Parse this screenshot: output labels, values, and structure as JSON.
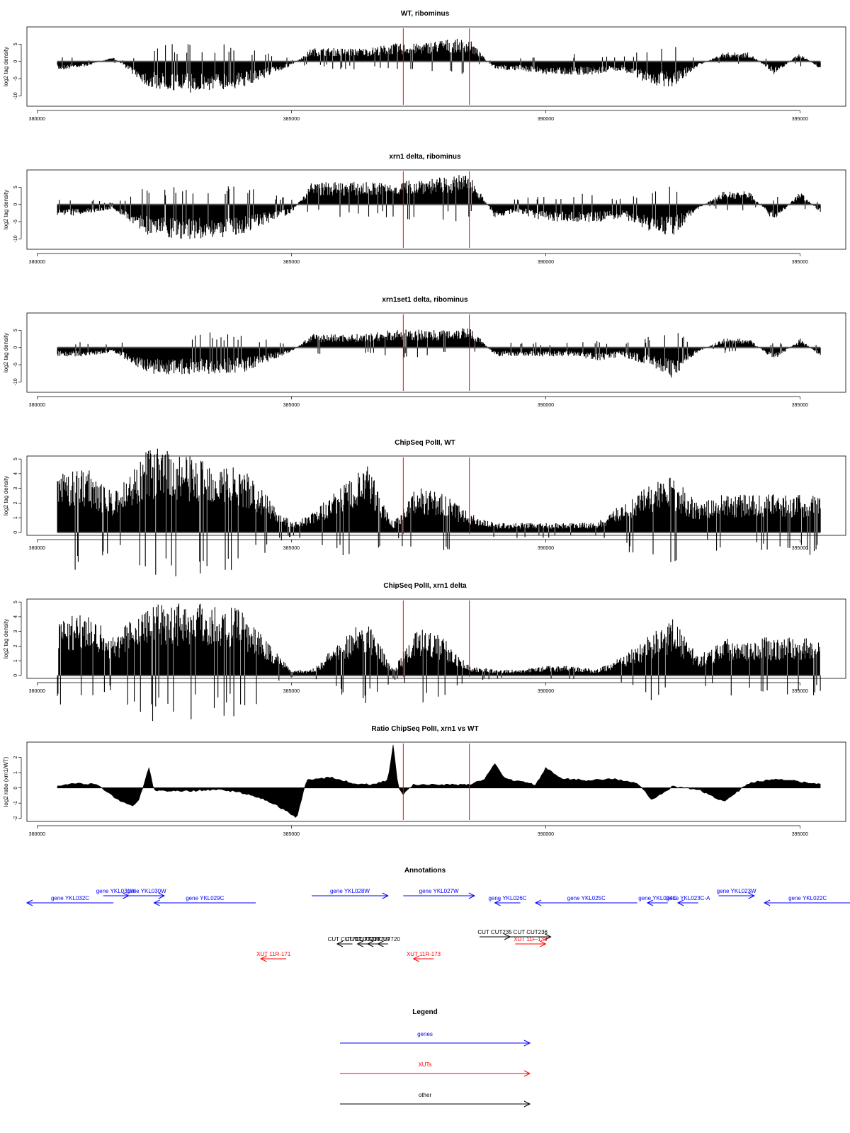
{
  "colors": {
    "signal": "#000000",
    "marker": "#ff0000",
    "gene": "#0000ff",
    "xut": "#ff0000",
    "other": "#000000"
  },
  "x_axis": {
    "ticks": [
      380000,
      385000,
      390000,
      395000
    ],
    "range": [
      379800,
      395900
    ],
    "data_start": 380400,
    "data_end": 395400
  },
  "markers": [
    387200,
    388500
  ],
  "chart_data": [
    {
      "type": "bar",
      "title": "WT, ribominus",
      "ylabel": "log2 tag density",
      "ylim": [
        -13,
        10
      ],
      "yticks": [
        5,
        0,
        -5,
        -10
      ],
      "x": [
        380400,
        381000,
        381500,
        382200,
        383000,
        384000,
        385000,
        385400,
        386000,
        386500,
        387000,
        387500,
        388000,
        388500,
        389000,
        389500,
        390000,
        390500,
        391000,
        391500,
        392000,
        392500,
        393000,
        393500,
        394000,
        394500,
        395000,
        395400
      ],
      "values": [
        -2,
        -1,
        1,
        -6,
        -7,
        -6,
        -1,
        3,
        3,
        3,
        4,
        4,
        5,
        5,
        -2,
        -2,
        -3,
        -3,
        -3,
        -2,
        -5,
        -6,
        -1,
        2,
        2,
        -3,
        2,
        -2
      ],
      "marker_lines": [
        387200,
        388500
      ]
    },
    {
      "type": "bar",
      "title": "xrn1 delta, ribominus",
      "ylabel": "log2 tag density",
      "ylim": [
        -13,
        10
      ],
      "yticks": [
        5,
        0,
        -5,
        -10
      ],
      "x": [
        380400,
        381000,
        381500,
        382200,
        383000,
        384000,
        385000,
        385400,
        386000,
        386500,
        387000,
        387500,
        388000,
        388500,
        389000,
        389500,
        390000,
        390500,
        391000,
        391500,
        392000,
        392500,
        393000,
        393500,
        394000,
        394500,
        395000,
        395400
      ],
      "values": [
        -3,
        -2,
        -1,
        -7,
        -8,
        -7,
        -2,
        5,
        5,
        5,
        5,
        6,
        6,
        7,
        -3,
        -2,
        -4,
        -4,
        -4,
        -3,
        -6,
        -7,
        -1,
        3,
        3,
        -4,
        3,
        -2
      ],
      "marker_lines": [
        387200,
        388500
      ]
    },
    {
      "type": "bar",
      "title": "xrn1set1 delta, ribominus",
      "ylabel": "log2 tag density",
      "ylim": [
        -13,
        10
      ],
      "yticks": [
        5,
        0,
        -5,
        -10
      ],
      "x": [
        380400,
        381000,
        381500,
        382200,
        383000,
        384000,
        385000,
        385400,
        386000,
        386500,
        387000,
        387500,
        388000,
        388500,
        389000,
        389500,
        390000,
        390500,
        391000,
        391500,
        392000,
        392500,
        393000,
        393500,
        394000,
        394500,
        395000,
        395400
      ],
      "values": [
        -2,
        -2,
        -1,
        -6,
        -6,
        -6,
        -1,
        3,
        3,
        3,
        4,
        4,
        4,
        5,
        -2,
        -2,
        -2,
        -2,
        -3,
        -2,
        -4,
        -7,
        -1,
        2,
        2,
        -3,
        2,
        -2
      ],
      "marker_lines": [
        387200,
        388500
      ]
    },
    {
      "type": "bar",
      "title": "ChipSeq PolII, WT",
      "ylabel": "log2 tag density",
      "ylim": [
        -0.2,
        5.2
      ],
      "yticks": [
        0,
        1,
        2,
        3,
        4,
        5
      ],
      "x": [
        380400,
        381000,
        381500,
        382200,
        383000,
        384000,
        385000,
        385400,
        386000,
        386500,
        387000,
        387500,
        388000,
        388500,
        389000,
        389500,
        390000,
        390500,
        391000,
        391500,
        392000,
        392500,
        393000,
        393500,
        394000,
        394500,
        395000,
        395400
      ],
      "values": [
        3,
        3.5,
        2,
        4.5,
        4,
        3.5,
        0.5,
        1,
        2.5,
        3.5,
        0.5,
        2.5,
        2,
        1,
        0.5,
        0.5,
        0.5,
        0.5,
        0.5,
        1.5,
        2.5,
        3,
        1.5,
        2,
        2,
        2,
        2,
        2
      ],
      "marker_lines": [
        387200,
        388500
      ]
    },
    {
      "type": "bar",
      "title": "ChipSeq PolII, xrn1 delta",
      "ylabel": "log2 tag density",
      "ylim": [
        -0.2,
        5.2
      ],
      "yticks": [
        0,
        1,
        2,
        3,
        4,
        5
      ],
      "x": [
        380400,
        381000,
        381500,
        382200,
        383000,
        384000,
        385000,
        385400,
        386000,
        386500,
        387000,
        387500,
        388000,
        388500,
        389000,
        389500,
        390000,
        390500,
        391000,
        391500,
        392000,
        392500,
        393000,
        393500,
        394000,
        394500,
        395000,
        395400
      ],
      "values": [
        3,
        3.5,
        2,
        4,
        4,
        3.5,
        0.3,
        0.3,
        2,
        3,
        0.3,
        2.5,
        2,
        0.5,
        0.3,
        0.3,
        0.5,
        0.5,
        0.3,
        1,
        2,
        3,
        1,
        2,
        2,
        2,
        2,
        2
      ],
      "marker_lines": [
        387200,
        388500
      ]
    },
    {
      "type": "area",
      "title": "Ratio ChipSeq PolII, xrn1 vs WT",
      "ylabel": "log2 ratio (xrn1/WT)",
      "ylim": [
        -2.2,
        3
      ],
      "yticks": [
        2,
        1,
        0,
        -1,
        -2
      ],
      "x": [
        380400,
        380800,
        381200,
        381600,
        381900,
        382000,
        382200,
        382300,
        383000,
        383600,
        384000,
        384500,
        384900,
        385100,
        385300,
        385800,
        386200,
        386600,
        386900,
        387000,
        387100,
        387200,
        387400,
        388000,
        388500,
        388800,
        389000,
        389200,
        389500,
        389800,
        390000,
        390300,
        390800,
        391300,
        391800,
        392100,
        392500,
        393000,
        393500,
        394000,
        394500,
        395000,
        395400
      ],
      "values": [
        0.1,
        0.3,
        0.2,
        -0.8,
        -1.2,
        -0.8,
        1.3,
        -0.2,
        -0.2,
        -0.1,
        -0.3,
        -0.8,
        -1.5,
        -2,
        0.5,
        0.7,
        0.3,
        0.2,
        0.5,
        2.8,
        0.1,
        -0.4,
        0.2,
        0.2,
        0.2,
        0.6,
        1.6,
        0.6,
        0.4,
        0.2,
        1.3,
        0.6,
        0.5,
        0.6,
        0.3,
        -0.8,
        0.1,
        -0.1,
        -0.9,
        0.3,
        0.6,
        0.4,
        0.2
      ],
      "marker_lines": [
        387200,
        388500
      ]
    }
  ],
  "annotations": {
    "title": "Annotations",
    "items": [
      {
        "label": "gene YKL032C",
        "kind": "gene",
        "start": 379800,
        "end": 381500,
        "dir": "left",
        "row": 1
      },
      {
        "label": "gene YKL031W",
        "kind": "gene",
        "start": 381300,
        "end": 381800,
        "dir": "right",
        "row": 0
      },
      {
        "label": "gene YKL030W",
        "kind": "gene",
        "start": 381800,
        "end": 382500,
        "dir": "right",
        "row": 0
      },
      {
        "label": "gene YKL029C",
        "kind": "gene",
        "start": 382300,
        "end": 384300,
        "dir": "left",
        "row": 1
      },
      {
        "label": "gene YKL028W",
        "kind": "gene",
        "start": 385400,
        "end": 386900,
        "dir": "right",
        "row": 0
      },
      {
        "label": "gene YKL027W",
        "kind": "gene",
        "start": 387200,
        "end": 388600,
        "dir": "right",
        "row": 0
      },
      {
        "label": "gene YKL026C",
        "kind": "gene",
        "start": 389000,
        "end": 389500,
        "dir": "left",
        "row": 1
      },
      {
        "label": "gene YKL025C",
        "kind": "gene",
        "start": 389800,
        "end": 391800,
        "dir": "left",
        "row": 1
      },
      {
        "label": "gene YKL024C",
        "kind": "gene",
        "start": 392000,
        "end": 392400,
        "dir": "left",
        "row": 1
      },
      {
        "label": "gene YKL023C-A",
        "kind": "gene",
        "start": 392600,
        "end": 393000,
        "dir": "left",
        "row": 1
      },
      {
        "label": "gene YKL023W",
        "kind": "gene",
        "start": 393400,
        "end": 394100,
        "dir": "right",
        "row": 0
      },
      {
        "label": "gene YKL022C",
        "kind": "gene",
        "start": 394300,
        "end": 396000,
        "dir": "left",
        "row": 1
      },
      {
        "label": "CUT CUT717",
        "kind": "other",
        "start": 385900,
        "end": 386200,
        "dir": "left",
        "row": 3
      },
      {
        "label": "CUT CUT718",
        "kind": "other",
        "start": 386300,
        "end": 386500,
        "dir": "left",
        "row": 3
      },
      {
        "label": "CUT CUT719",
        "kind": "other",
        "start": 386500,
        "end": 386700,
        "dir": "left",
        "row": 3
      },
      {
        "label": "CUT CUT720",
        "kind": "other",
        "start": 386700,
        "end": 386900,
        "dir": "left",
        "row": 3
      },
      {
        "label": "CUT CUT235",
        "kind": "other",
        "start": 388700,
        "end": 389300,
        "dir": "right",
        "row": 2
      },
      {
        "label": "CUT CUT236",
        "kind": "other",
        "start": 389300,
        "end": 390100,
        "dir": "right",
        "row": 2
      },
      {
        "label": "XUT 11R-171",
        "kind": "xut",
        "start": 384400,
        "end": 384900,
        "dir": "left",
        "row": 4
      },
      {
        "label": "XUT 11R-173",
        "kind": "xut",
        "start": 387400,
        "end": 387800,
        "dir": "left",
        "row": 4
      },
      {
        "label": "XUT 11F-138",
        "kind": "xut",
        "start": 389400,
        "end": 390000,
        "dir": "right",
        "row": 3
      }
    ]
  },
  "legend": {
    "title": "Legend",
    "entries": [
      {
        "label": "genes",
        "kind": "gene"
      },
      {
        "label": "XUTs",
        "kind": "xut"
      },
      {
        "label": "other",
        "kind": "other"
      }
    ]
  }
}
